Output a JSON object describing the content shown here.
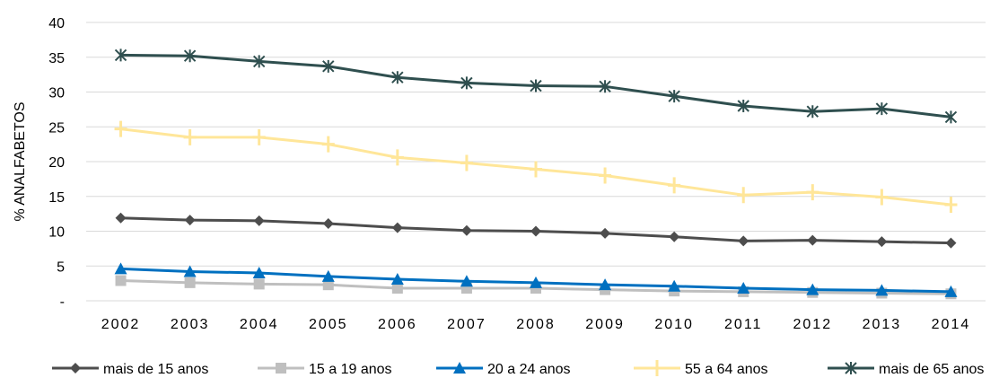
{
  "chart_data": {
    "type": "line",
    "title": "",
    "xlabel": "",
    "ylabel": "% ANALFABETOS",
    "categories": [
      "2002",
      "2003",
      "2004",
      "2005",
      "2006",
      "2007",
      "2008",
      "2009",
      "2010",
      "2011",
      "2012",
      "2013",
      "2014"
    ],
    "ylim": [
      0,
      40
    ],
    "yticks": [
      0,
      5,
      10,
      15,
      20,
      25,
      30,
      35,
      40
    ],
    "ytick_labels": [
      "-",
      "5",
      "10",
      "15",
      "20",
      "25",
      "30",
      "35",
      "40"
    ],
    "grid": "horizontal",
    "legend_position": "bottom",
    "series": [
      {
        "name": "mais de 15 anos",
        "color": "#4d4d4d",
        "marker": "diamond",
        "values": [
          11.9,
          11.6,
          11.5,
          11.1,
          10.5,
          10.1,
          10.0,
          9.7,
          9.2,
          8.6,
          8.7,
          8.5,
          8.3
        ]
      },
      {
        "name": "15 a 19 anos",
        "color": "#bfbfbf",
        "marker": "square",
        "values": [
          2.9,
          2.6,
          2.4,
          2.3,
          1.8,
          1.8,
          1.8,
          1.6,
          1.4,
          1.3,
          1.2,
          1.1,
          1.0
        ]
      },
      {
        "name": "20 a 24 anos",
        "color": "#0070c0",
        "marker": "triangle",
        "values": [
          4.6,
          4.2,
          4.0,
          3.5,
          3.1,
          2.8,
          2.6,
          2.3,
          2.1,
          1.8,
          1.6,
          1.5,
          1.3
        ]
      },
      {
        "name": "55 a 64 anos",
        "color": "#ffe699",
        "marker": "plus",
        "values": [
          24.7,
          23.5,
          23.5,
          22.5,
          20.6,
          19.8,
          18.9,
          18.0,
          16.6,
          15.2,
          15.6,
          14.9,
          13.8
        ]
      },
      {
        "name": "mais de 65 anos",
        "color": "#2f4f4f",
        "marker": "star",
        "values": [
          35.3,
          35.2,
          34.4,
          33.7,
          32.1,
          31.3,
          30.9,
          30.8,
          29.4,
          28.0,
          27.2,
          27.6,
          26.4
        ]
      }
    ]
  }
}
